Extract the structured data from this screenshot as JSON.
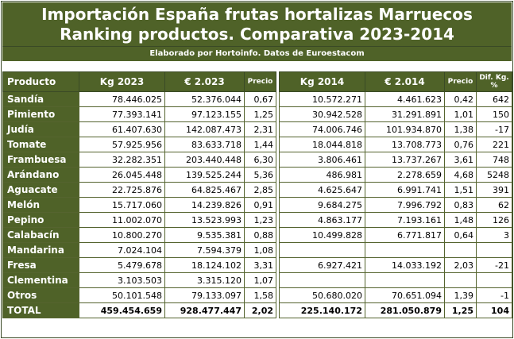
{
  "title_line1": "Importación España frutas hortalizas Marruecos",
  "title_line2": "Ranking productos. Comparativa 2023-2014",
  "subtitle": "Elaborado por Hortoinfo. Datos de Euroestacom",
  "headers": [
    "Producto",
    "Kg 2023",
    "€ 2.023",
    "Precio",
    "Kg 2014",
    "€ 2.014",
    "Precio",
    "Dif. Kg. %"
  ],
  "rows": [
    {
      "producto": "Sandía",
      "kg2023": "78.446.025",
      "eur2023": "52.376.044",
      "precio2023": "0,67",
      "kg2014": "10.572.271",
      "eur2014": "4.461.623",
      "precio2014": "0,42",
      "dif": "642"
    },
    {
      "producto": "Pimiento",
      "kg2023": "77.393.141",
      "eur2023": "97.123.155",
      "precio2023": "1,25",
      "kg2014": "30.942.528",
      "eur2014": "31.291.891",
      "precio2014": "1,01",
      "dif": "150"
    },
    {
      "producto": "Judía",
      "kg2023": "61.407.630",
      "eur2023": "142.087.473",
      "precio2023": "2,31",
      "kg2014": "74.006.746",
      "eur2014": "101.934.870",
      "precio2014": "1,38",
      "dif": "-17"
    },
    {
      "producto": "Tomate",
      "kg2023": "57.925.956",
      "eur2023": "83.633.718",
      "precio2023": "1,44",
      "kg2014": "18.044.818",
      "eur2014": "13.708.773",
      "precio2014": "0,76",
      "dif": "221"
    },
    {
      "producto": "Frambuesa",
      "kg2023": "32.282.351",
      "eur2023": "203.440.448",
      "precio2023": "6,30",
      "kg2014": "3.806.461",
      "eur2014": "13.737.267",
      "precio2014": "3,61",
      "dif": "748"
    },
    {
      "producto": "Arándano",
      "kg2023": "26.045.448",
      "eur2023": "139.525.244",
      "precio2023": "5,36",
      "kg2014": "486.981",
      "eur2014": "2.278.659",
      "precio2014": "4,68",
      "dif": "5248"
    },
    {
      "producto": "Aguacate",
      "kg2023": "22.725.876",
      "eur2023": "64.825.467",
      "precio2023": "2,85",
      "kg2014": "4.625.647",
      "eur2014": "6.991.741",
      "precio2014": "1,51",
      "dif": "391"
    },
    {
      "producto": "Melón",
      "kg2023": "15.717.060",
      "eur2023": "14.239.826",
      "precio2023": "0,91",
      "kg2014": "9.684.275",
      "eur2014": "7.996.792",
      "precio2014": "0,83",
      "dif": "62"
    },
    {
      "producto": "Pepino",
      "kg2023": "11.002.070",
      "eur2023": "13.523.993",
      "precio2023": "1,23",
      "kg2014": "4.863.177",
      "eur2014": "7.193.161",
      "precio2014": "1,48",
      "dif": "126"
    },
    {
      "producto": "Calabacín",
      "kg2023": "10.800.270",
      "eur2023": "9.535.381",
      "precio2023": "0,88",
      "kg2014": "10.499.828",
      "eur2014": "6.771.817",
      "precio2014": "0,64",
      "dif": "3"
    },
    {
      "producto": "Mandarina",
      "kg2023": "7.024.104",
      "eur2023": "7.594.379",
      "precio2023": "1,08",
      "kg2014": "",
      "eur2014": "",
      "precio2014": "",
      "dif": ""
    },
    {
      "producto": "Fresa",
      "kg2023": "5.479.678",
      "eur2023": "18.124.102",
      "precio2023": "3,31",
      "kg2014": "6.927.421",
      "eur2014": "14.033.192",
      "precio2014": "2,03",
      "dif": "-21"
    },
    {
      "producto": "Clementina",
      "kg2023": "3.103.503",
      "eur2023": "3.315.120",
      "precio2023": "1,07",
      "kg2014": "",
      "eur2014": "",
      "precio2014": "",
      "dif": ""
    },
    {
      "producto": "Otros",
      "kg2023": "50.101.548",
      "eur2023": "79.133.097",
      "precio2023": "1,58",
      "kg2014": "50.680.020",
      "eur2014": "70.651.094",
      "precio2014": "1,39",
      "dif": "-1"
    }
  ],
  "total": {
    "producto": "TOTAL",
    "kg2023": "459.454.659",
    "eur2023": "928.477.447",
    "precio2023": "2,02",
    "kg2014": "225.140.172",
    "eur2014": "281.050.879",
    "precio2014": "1,25",
    "dif": "104"
  },
  "colors": {
    "header_green": "#4f6228",
    "border": "#3a4a26",
    "text_white": "#ffffff"
  }
}
